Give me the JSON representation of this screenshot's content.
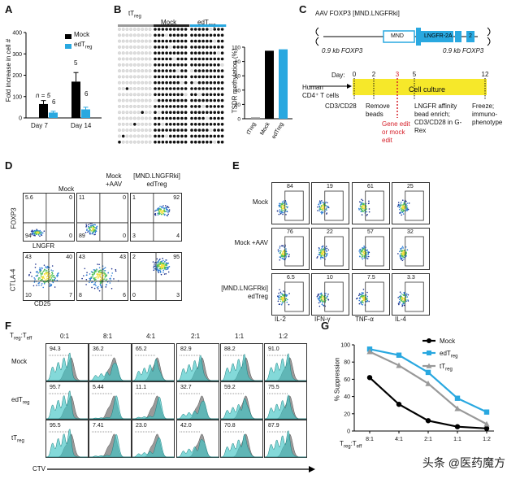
{
  "panel_labels": {
    "a": "A",
    "b": "B",
    "c": "C",
    "d": "D",
    "e": "E",
    "f": "F",
    "g": "G"
  },
  "watermark": "头条 @医药魔方",
  "panel_a": {
    "ylabel": "Fold increase in cell #",
    "yticks": [
      "0",
      "100",
      "200",
      "300",
      "400"
    ],
    "legend": [
      "Mock",
      "edTreg"
    ],
    "n_label": "n = 5",
    "colors": {
      "mock": "#000000",
      "edtreg": "#29a8e0"
    },
    "chart_data": {
      "type": "bar",
      "categories": [
        "Day 7",
        "Day 14"
      ],
      "series": [
        {
          "name": "Mock",
          "values": [
            65,
            170
          ],
          "n": [
            "n = 5",
            "5"
          ]
        },
        {
          "name": "edTreg",
          "values": [
            25,
            40
          ],
          "n": [
            "6",
            "6"
          ]
        }
      ],
      "ylim": [
        0,
        400
      ]
    }
  },
  "panel_b": {
    "groups": [
      "tTreg",
      "Mock",
      "edTreg"
    ],
    "ylabel": "TSDR methylation (%)",
    "yticks": [
      "0",
      "20",
      "40",
      "60",
      "80",
      "100"
    ],
    "chart_data": {
      "type": "bar",
      "categories": [
        "tTreg",
        "Mock",
        "edTreg"
      ],
      "values": [
        2,
        95,
        97
      ],
      "ylim": [
        0,
        100
      ]
    }
  },
  "panel_c": {
    "title": "AAV FOXP3 [MND.LNGFRki]",
    "construct": [
      "MND",
      "LNGFR-2A",
      "2"
    ],
    "homology": [
      "0.9 kb FOXP3",
      "0.9 kb FOXP3"
    ],
    "day_label": "Day:",
    "days": [
      "0",
      "2",
      "3",
      "5",
      "12"
    ],
    "start": "Human CD4⁺ T cells",
    "culture": "Cell culture",
    "steps": [
      "CD3/CD28",
      "Remove beads",
      "Gene edit or mock edit",
      "LNGFR affinity bead enrich; CD3/CD28 in G-Rex",
      "Freeze; immuno-phenotype"
    ]
  },
  "panel_d": {
    "cols": [
      "Mock",
      "Mock +AAV",
      "[MND.LNGFRki] edTreg"
    ],
    "row1": {
      "y": "FOXP3",
      "x": "LNGFR",
      "q": [
        [
          "5.6",
          "0",
          "94",
          "0"
        ],
        [
          "11",
          "0",
          "89",
          "0"
        ],
        [
          "1",
          "92",
          "3",
          "4"
        ]
      ]
    },
    "row2": {
      "y": "CTLA-4",
      "x": "CD25",
      "q": [
        [
          "43",
          "40",
          "10",
          "7"
        ],
        [
          "43",
          "43",
          "8",
          "6"
        ],
        [
          "2",
          "95",
          "0",
          "3"
        ]
      ]
    }
  },
  "panel_e": {
    "rows": [
      "Mock",
      "Mock +AAV",
      "[MND.LNGFRki] edTreg"
    ],
    "cols": [
      "IL-2",
      "IFN-γ",
      "TNF-α",
      "IL-4"
    ],
    "values": [
      [
        "84",
        "19",
        "61",
        "25"
      ],
      [
        "76",
        "22",
        "57",
        "32"
      ],
      [
        "6.5",
        "10",
        "7.5",
        "3.3"
      ]
    ]
  },
  "panel_f": {
    "ratio_label": "Treg:Teff",
    "ratios": [
      "0:1",
      "8:1",
      "4:1",
      "2:1",
      "1:1",
      "1:2"
    ],
    "rows": [
      "Mock",
      "edTreg",
      "tTreg"
    ],
    "values": [
      [
        "94.3",
        "36.2",
        "65.2",
        "82.9",
        "88.2",
        "91.0"
      ],
      [
        "95.7",
        "5.44",
        "11.1",
        "32.7",
        "59.2",
        "75.5"
      ],
      [
        "95.5",
        "7.41",
        "23.0",
        "42.0",
        "70.8",
        "87.9"
      ]
    ],
    "xlabel": "CTV"
  },
  "panel_g": {
    "ylabel": "% Suppression",
    "xlabel": "Treg:Teff",
    "yticks": [
      "0",
      "20",
      "40",
      "60",
      "80",
      "100"
    ],
    "colors": {
      "mock": "#000000",
      "edtreg": "#29a8e0",
      "ttreg": "#999999"
    },
    "chart_data": {
      "type": "line",
      "categories": [
        "8:1",
        "4:1",
        "2:1",
        "1:1",
        "1:2"
      ],
      "series": [
        {
          "name": "Mock",
          "values": [
            62,
            31,
            12,
            5,
            3
          ]
        },
        {
          "name": "edTreg",
          "values": [
            95,
            88,
            68,
            38,
            22
          ]
        },
        {
          "name": "tTreg",
          "values": [
            92,
            76,
            55,
            26,
            8
          ]
        }
      ],
      "ylim": [
        0,
        100
      ]
    }
  }
}
